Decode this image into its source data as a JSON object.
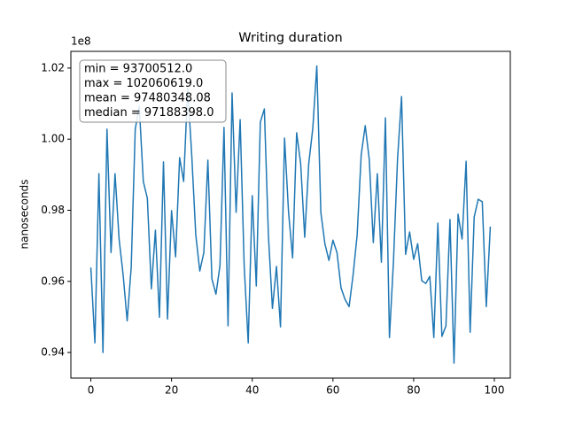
{
  "chart_data": {
    "type": "line",
    "title": "Writing duration",
    "ylabel": "nanoseconds",
    "y_offset_label": "1e8",
    "annotation": [
      "min = 93700512.0",
      "max = 102060619.0",
      "mean = 97480348.08",
      "median = 97188398.0"
    ],
    "color": "#1f77b4",
    "x": [
      0,
      1,
      2,
      3,
      4,
      5,
      6,
      7,
      8,
      9,
      10,
      11,
      12,
      13,
      14,
      15,
      16,
      17,
      18,
      19,
      20,
      21,
      22,
      23,
      24,
      25,
      26,
      27,
      28,
      29,
      30,
      31,
      32,
      33,
      34,
      35,
      36,
      37,
      38,
      39,
      40,
      41,
      42,
      43,
      44,
      45,
      46,
      47,
      48,
      49,
      50,
      51,
      52,
      53,
      54,
      55,
      56,
      57,
      58,
      59,
      60,
      61,
      62,
      63,
      64,
      65,
      66,
      67,
      68,
      69,
      70,
      71,
      72,
      73,
      74,
      75,
      76,
      77,
      78,
      79,
      80,
      81,
      82,
      83,
      84,
      85,
      86,
      87,
      88,
      89,
      90,
      91,
      92,
      93,
      94,
      95,
      96,
      97,
      98,
      99
    ],
    "values": [
      0.9639,
      0.9427,
      0.9903,
      0.94,
      1.0028,
      0.9681,
      0.9903,
      0.9719,
      0.9619,
      0.9489,
      0.9639,
      1.0028,
      1.0093,
      0.9881,
      0.9834,
      0.9579,
      0.9744,
      0.9499,
      0.9936,
      0.9494,
      0.9799,
      0.9669,
      0.9948,
      0.9881,
      1.0143,
      0.9956,
      0.9731,
      0.9629,
      0.9681,
      0.9941,
      0.9607,
      0.9564,
      0.9644,
      1.0033,
      0.9475,
      1.013,
      0.9794,
      1.0055,
      0.9644,
      0.9427,
      0.9841,
      0.9587,
      1.0048,
      1.0085,
      0.9731,
      0.9524,
      0.9642,
      0.9472,
      1.0003,
      0.9794,
      0.9666,
      1.0018,
      0.9931,
      0.9724,
      0.9931,
      1.003,
      1.0206,
      0.9794,
      0.9706,
      0.9659,
      0.9716,
      0.9681,
      0.9582,
      0.9549,
      0.9529,
      0.9619,
      0.9731,
      0.9956,
      1.0038,
      0.9943,
      0.9709,
      0.9903,
      0.9654,
      1.006,
      0.9442,
      0.9657,
      0.9943,
      1.012,
      0.9676,
      0.9739,
      0.9662,
      0.9706,
      0.9602,
      0.9594,
      0.9614,
      0.9442,
      0.9764,
      0.9445,
      0.9475,
      0.9774,
      0.937,
      0.9789,
      0.9719,
      0.9938,
      0.9457,
      0.9781,
      0.9831,
      0.9824,
      0.9529,
      0.9754
    ],
    "xlim": [
      -4.95,
      103.95
    ],
    "ylim": [
      0.9328,
      1.0247
    ],
    "xticks": [
      0,
      20,
      40,
      60,
      80,
      100
    ],
    "yticks": [
      0.94,
      0.96,
      0.98,
      {
        "value": 1.0,
        "label": "1.00"
      },
      1.02
    ]
  }
}
